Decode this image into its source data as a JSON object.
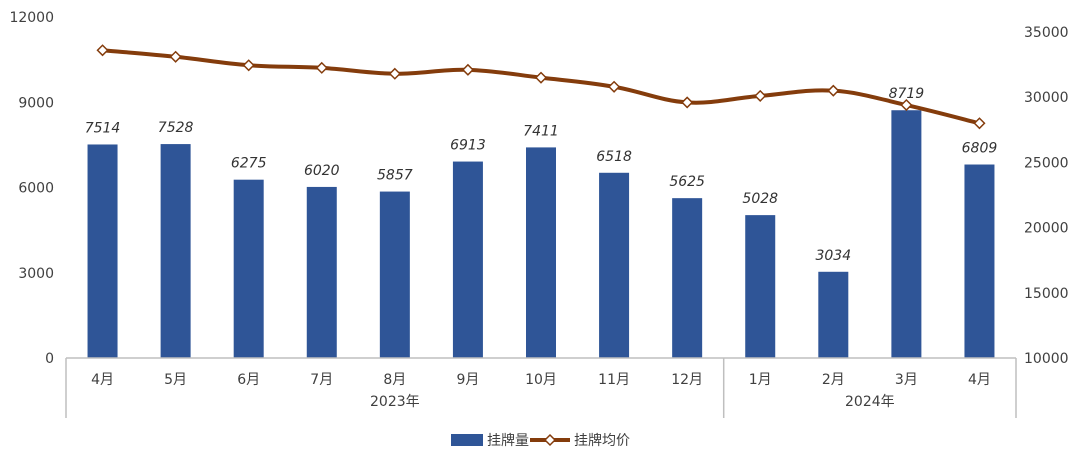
{
  "chart_data": {
    "type": "bar+line",
    "categories": [
      "4月",
      "5月",
      "6月",
      "7月",
      "8月",
      "9月",
      "10月",
      "11月",
      "12月",
      "1月",
      "2月",
      "3月",
      "4月"
    ],
    "groups": [
      {
        "label": "2023年",
        "count": 9
      },
      {
        "label": "2024年",
        "count": 4
      }
    ],
    "series": [
      {
        "name": "挂牌量",
        "type": "bar",
        "axis": "left",
        "color": "#2F5597",
        "values": [
          7514,
          7528,
          6275,
          6020,
          5857,
          6913,
          7411,
          6518,
          5625,
          5028,
          3034,
          8719,
          6809
        ]
      },
      {
        "name": "挂牌均价",
        "type": "line",
        "axis": "right",
        "color": "#843C0C",
        "marker_fill": "#ffffff",
        "values": [
          33600,
          33100,
          32450,
          32250,
          31800,
          32100,
          31500,
          30800,
          29600,
          30100,
          30500,
          29400,
          28000
        ]
      }
    ],
    "y_left": {
      "min": 0,
      "max": 12000,
      "ticks": [
        0,
        3000,
        6000,
        9000,
        12000
      ]
    },
    "y_right": {
      "min": 10000,
      "max": 35000,
      "ticks": [
        10000,
        15000,
        20000,
        25000,
        30000,
        35000
      ]
    },
    "data_labels": "bar-values",
    "legend": "bottom-center",
    "grid": false
  }
}
